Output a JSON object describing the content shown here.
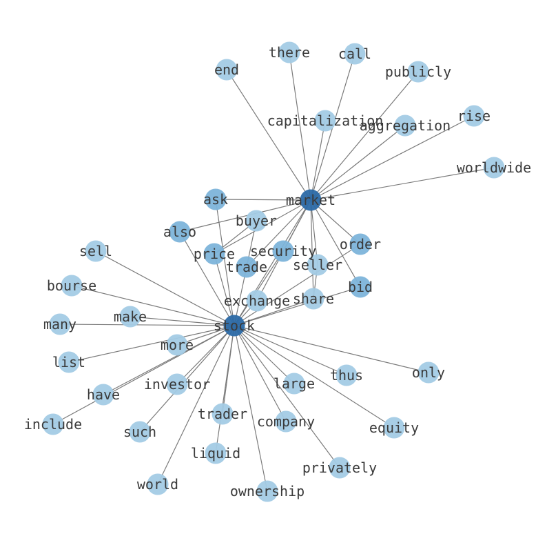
{
  "chart_data": {
    "type": "network",
    "colors": {
      "hub": "#2c6aa6",
      "mid": "#7db4da",
      "leaf": "#a3cbe5",
      "edge": "#7a7a7a"
    },
    "nodes": [
      {
        "id": "market",
        "level": "hub"
      },
      {
        "id": "stock",
        "level": "hub"
      },
      {
        "id": "end",
        "level": "leaf"
      },
      {
        "id": "there",
        "level": "leaf"
      },
      {
        "id": "call",
        "level": "leaf"
      },
      {
        "id": "publicly",
        "level": "leaf"
      },
      {
        "id": "capitalization",
        "level": "leaf"
      },
      {
        "id": "aggregation",
        "level": "leaf"
      },
      {
        "id": "rise",
        "level": "leaf"
      },
      {
        "id": "worldwide",
        "level": "leaf"
      },
      {
        "id": "ask",
        "level": "mid"
      },
      {
        "id": "buyer",
        "level": "leaf"
      },
      {
        "id": "also",
        "level": "mid"
      },
      {
        "id": "order",
        "level": "mid"
      },
      {
        "id": "price",
        "level": "mid"
      },
      {
        "id": "security",
        "level": "mid"
      },
      {
        "id": "trade",
        "level": "mid"
      },
      {
        "id": "seller",
        "level": "leaf"
      },
      {
        "id": "bid",
        "level": "mid"
      },
      {
        "id": "exchange",
        "level": "leaf"
      },
      {
        "id": "share",
        "level": "leaf"
      },
      {
        "id": "sell",
        "level": "leaf"
      },
      {
        "id": "bourse",
        "level": "leaf"
      },
      {
        "id": "make",
        "level": "leaf"
      },
      {
        "id": "many",
        "level": "leaf"
      },
      {
        "id": "more",
        "level": "leaf"
      },
      {
        "id": "list",
        "level": "leaf"
      },
      {
        "id": "investor",
        "level": "leaf"
      },
      {
        "id": "have",
        "level": "leaf"
      },
      {
        "id": "include",
        "level": "leaf"
      },
      {
        "id": "such",
        "level": "leaf"
      },
      {
        "id": "trader",
        "level": "leaf"
      },
      {
        "id": "liquid",
        "level": "leaf"
      },
      {
        "id": "company",
        "level": "leaf"
      },
      {
        "id": "large",
        "level": "leaf"
      },
      {
        "id": "thus",
        "level": "leaf"
      },
      {
        "id": "only",
        "level": "leaf"
      },
      {
        "id": "equity",
        "level": "leaf"
      },
      {
        "id": "privately",
        "level": "leaf"
      },
      {
        "id": "world",
        "level": "leaf"
      },
      {
        "id": "ownership",
        "level": "leaf"
      }
    ],
    "edges": [
      [
        "market",
        "stock"
      ],
      [
        "market",
        "end"
      ],
      [
        "market",
        "there"
      ],
      [
        "market",
        "call"
      ],
      [
        "market",
        "publicly"
      ],
      [
        "market",
        "capitalization"
      ],
      [
        "market",
        "aggregation"
      ],
      [
        "market",
        "rise"
      ],
      [
        "market",
        "worldwide"
      ],
      [
        "market",
        "ask"
      ],
      [
        "market",
        "also"
      ],
      [
        "market",
        "price"
      ],
      [
        "market",
        "security"
      ],
      [
        "market",
        "trade"
      ],
      [
        "market",
        "seller"
      ],
      [
        "market",
        "order"
      ],
      [
        "market",
        "bid"
      ],
      [
        "market",
        "exchange"
      ],
      [
        "market",
        "share"
      ],
      [
        "buyer",
        "trade"
      ],
      [
        "buyer",
        "price"
      ],
      [
        "seller",
        "share"
      ],
      [
        "stock",
        "ask"
      ],
      [
        "stock",
        "also"
      ],
      [
        "stock",
        "price"
      ],
      [
        "stock",
        "trade"
      ],
      [
        "stock",
        "security"
      ],
      [
        "stock",
        "exchange"
      ],
      [
        "stock",
        "share"
      ],
      [
        "stock",
        "bid"
      ],
      [
        "stock",
        "order"
      ],
      [
        "stock",
        "sell"
      ],
      [
        "stock",
        "bourse"
      ],
      [
        "stock",
        "make"
      ],
      [
        "stock",
        "many"
      ],
      [
        "stock",
        "more"
      ],
      [
        "stock",
        "list"
      ],
      [
        "stock",
        "investor"
      ],
      [
        "stock",
        "have"
      ],
      [
        "stock",
        "include"
      ],
      [
        "stock",
        "such"
      ],
      [
        "stock",
        "trader"
      ],
      [
        "stock",
        "liquid"
      ],
      [
        "stock",
        "company"
      ],
      [
        "stock",
        "large"
      ],
      [
        "stock",
        "thus"
      ],
      [
        "stock",
        "only"
      ],
      [
        "stock",
        "equity"
      ],
      [
        "stock",
        "privately"
      ],
      [
        "stock",
        "world"
      ],
      [
        "stock",
        "ownership"
      ]
    ]
  }
}
